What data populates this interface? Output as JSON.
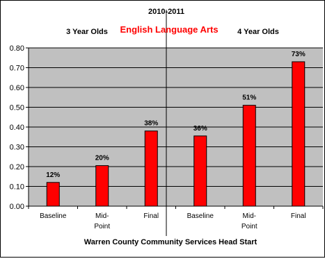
{
  "chart_data": {
    "type": "bar",
    "title": "2010-2011",
    "subtitle": "English Language Arts",
    "group_labels": [
      "3 Year Olds",
      "4 Year Olds"
    ],
    "xlabel": "Warren County Community Services Head Start",
    "ylabel": "",
    "ylim": [
      0,
      0.8
    ],
    "y_ticks": [
      "0.00",
      "0.10",
      "0.20",
      "0.30",
      "0.40",
      "0.50",
      "0.60",
      "0.70",
      "0.80"
    ],
    "categories": [
      "Baseline",
      "Mid-Point",
      "Final",
      "Baseline",
      "Mid-Point",
      "Final"
    ],
    "category_lines": [
      [
        "Baseline"
      ],
      [
        "Mid-",
        "Point"
      ],
      [
        "Final"
      ],
      [
        "Baseline"
      ],
      [
        "Mid-",
        "Point"
      ],
      [
        "Final"
      ]
    ],
    "values": [
      0.12,
      0.205,
      0.38,
      0.355,
      0.51,
      0.73
    ],
    "data_labels": [
      "12%",
      "20%",
      "38%",
      "36%",
      "51%",
      "73%"
    ],
    "bar_color": "#ff0000",
    "bar_border_color": "#000000",
    "plot_background": "#c0c0c0",
    "subtitle_color": "#ff0000",
    "grid": true,
    "legend": "none"
  }
}
